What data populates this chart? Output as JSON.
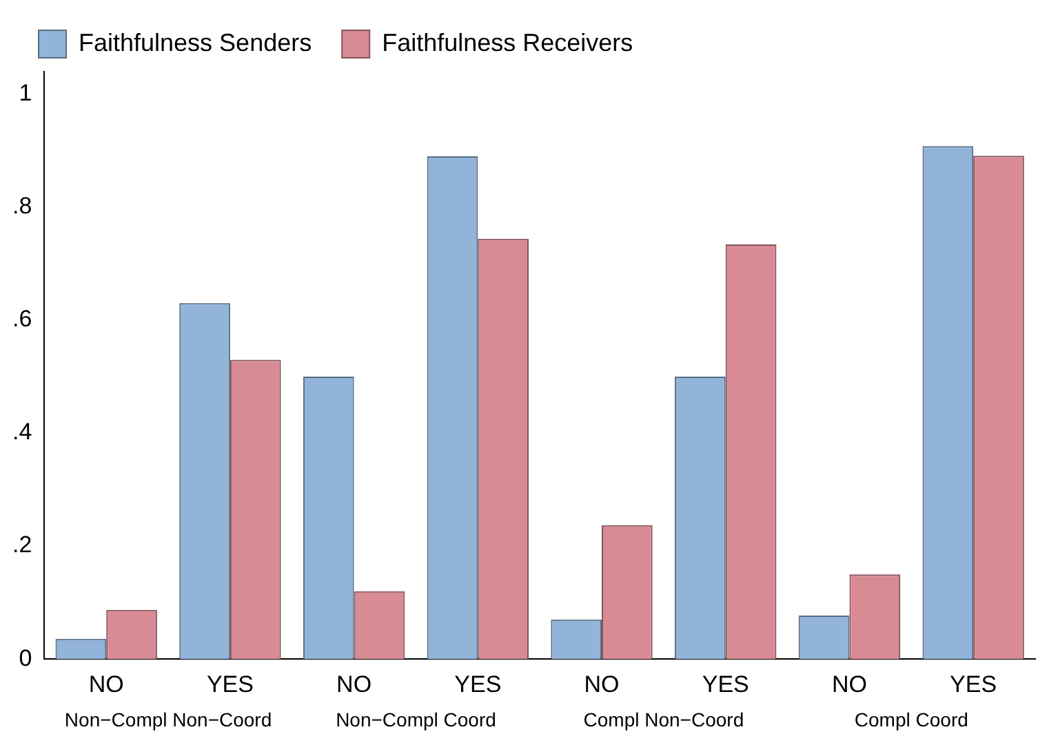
{
  "chart_data": {
    "type": "bar",
    "categories": [
      "NO",
      "YES",
      "NO",
      "YES",
      "NO",
      "YES",
      "NO",
      "YES"
    ],
    "series": [
      {
        "name": "Faithfulness Senders",
        "color": "#92b4d9",
        "values": [
          0.036,
          0.63,
          0.5,
          0.89,
          0.07,
          0.5,
          0.077,
          0.908
        ]
      },
      {
        "name": "Faithfulness Receivers",
        "color": "#d98b95",
        "values": [
          0.087,
          0.53,
          0.12,
          0.744,
          0.237,
          0.734,
          0.15,
          0.891
        ]
      }
    ],
    "annotations": [
      "Non−Compl Non−Coord",
      "Non−Compl Coord",
      "Compl Non−Coord",
      "Compl Coord"
    ],
    "ylim": [
      0,
      1.04
    ],
    "yticks": [
      0,
      {
        "value": 0.2,
        "label": ".2"
      },
      {
        "value": 0.4,
        "label": ".4"
      },
      {
        "value": 0.6,
        "label": ".6"
      },
      {
        "value": 0.8,
        "label": ".8"
      },
      1
    ],
    "grid": false,
    "legend": "top left"
  }
}
